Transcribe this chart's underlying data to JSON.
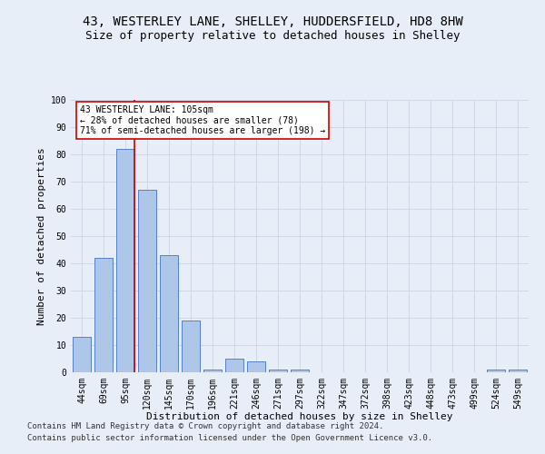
{
  "title": "43, WESTERLEY LANE, SHELLEY, HUDDERSFIELD, HD8 8HW",
  "subtitle": "Size of property relative to detached houses in Shelley",
  "xlabel": "Distribution of detached houses by size in Shelley",
  "ylabel": "Number of detached properties",
  "categories": [
    "44sqm",
    "69sqm",
    "95sqm",
    "120sqm",
    "145sqm",
    "170sqm",
    "196sqm",
    "221sqm",
    "246sqm",
    "271sqm",
    "297sqm",
    "322sqm",
    "347sqm",
    "372sqm",
    "398sqm",
    "423sqm",
    "448sqm",
    "473sqm",
    "499sqm",
    "524sqm",
    "549sqm"
  ],
  "values": [
    13,
    42,
    82,
    67,
    43,
    19,
    1,
    5,
    4,
    1,
    1,
    0,
    0,
    0,
    0,
    0,
    0,
    0,
    0,
    1,
    1
  ],
  "bar_color": "#aec6e8",
  "bar_edge_color": "#4472c4",
  "vline_x_index": 2,
  "vline_color": "#cc0000",
  "annotation_line1": "43 WESTERLEY LANE: 105sqm",
  "annotation_line2": "← 28% of detached houses are smaller (78)",
  "annotation_line3": "71% of semi-detached houses are larger (198) →",
  "annotation_box_color": "#ffffff",
  "annotation_box_edge": "#cc0000",
  "grid_color": "#d0d8e8",
  "background_color": "#e8eef7",
  "footer_line1": "Contains HM Land Registry data © Crown copyright and database right 2024.",
  "footer_line2": "Contains public sector information licensed under the Open Government Licence v3.0.",
  "ylim": [
    0,
    100
  ],
  "title_fontsize": 10,
  "subtitle_fontsize": 9,
  "axis_label_fontsize": 8,
  "tick_fontsize": 7,
  "annotation_fontsize": 7,
  "footer_fontsize": 6.5
}
